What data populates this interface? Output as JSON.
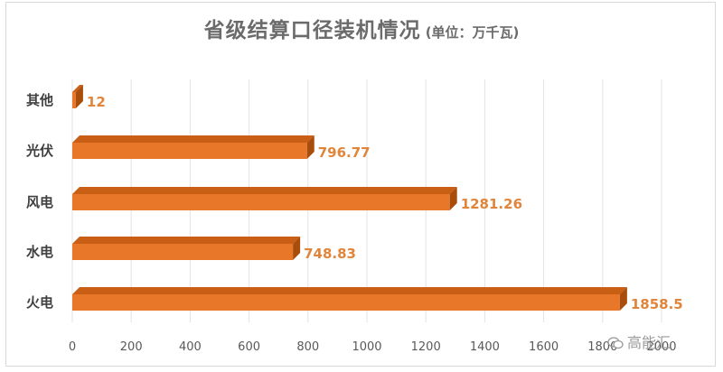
{
  "title": "省级结算口径装机情况",
  "unit": "(单位：万千瓦)",
  "watermark": "高能汇",
  "colors": {
    "bar_front": "#e8772a",
    "bar_top": "#c85f15",
    "bar_side": "#a94d0c",
    "label": "#e0853a",
    "category": "#404040",
    "tick": "#595959",
    "grid": "#e3e3e3"
  },
  "chart_data": {
    "type": "bar",
    "orientation": "horizontal",
    "style": "3d",
    "categories": [
      "其他",
      "光伏",
      "风电",
      "水电",
      "火电"
    ],
    "values": [
      12,
      796.77,
      1281.26,
      748.83,
      1858.5
    ],
    "value_labels": [
      "12",
      "796.77",
      "1281.26",
      "748.83",
      "1858.5"
    ],
    "xlim": [
      0,
      2000
    ],
    "xticks": [
      0,
      200,
      400,
      600,
      800,
      1000,
      1200,
      1400,
      1600,
      1800,
      2000
    ],
    "grid": "vertical",
    "legend": "none"
  }
}
